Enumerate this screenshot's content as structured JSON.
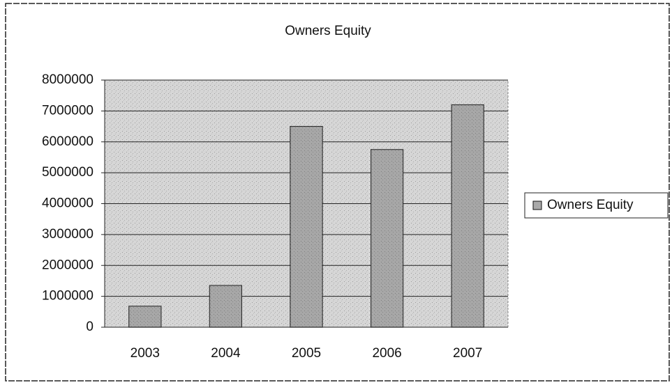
{
  "chart_data": {
    "type": "bar",
    "title": "Owners Equity",
    "categories": [
      "2003",
      "2004",
      "2005",
      "2006",
      "2007"
    ],
    "series": [
      {
        "name": "Owners Equity",
        "color": "#a9a9a9",
        "values": [
          680000,
          1350000,
          6500000,
          5750000,
          7200000
        ]
      }
    ],
    "ylim": [
      0,
      8000000
    ],
    "yticks": [
      0,
      1000000,
      2000000,
      3000000,
      4000000,
      5000000,
      6000000,
      7000000,
      8000000
    ],
    "grid": true,
    "legend": "right"
  }
}
